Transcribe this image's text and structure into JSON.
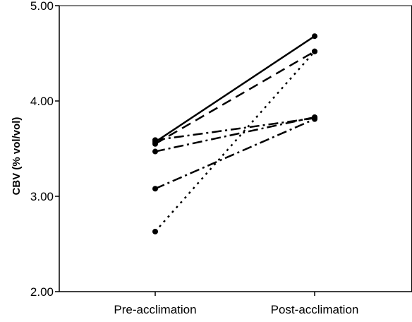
{
  "chart_data": {
    "type": "line",
    "title": "",
    "xlabel": "",
    "ylabel": "CBV (% vol/vol)",
    "categories": [
      "Pre-acclimation",
      "Post-acclimation"
    ],
    "ylim": [
      2.0,
      5.0
    ],
    "yticks": [
      2.0,
      3.0,
      4.0,
      5.0
    ],
    "ytick_labels": [
      "2.00",
      "3.00",
      "4.00",
      "5.00"
    ],
    "grid": false,
    "legend": "none",
    "series": [
      {
        "values": [
          3.57,
          4.68
        ],
        "line_style": "solid"
      },
      {
        "values": [
          3.55,
          4.52
        ],
        "line_style": "dashed"
      },
      {
        "values": [
          2.63,
          4.52
        ],
        "line_style": "dotted"
      },
      {
        "values": [
          3.47,
          3.83
        ],
        "line_style": "dash-dot"
      },
      {
        "values": [
          3.08,
          3.81
        ],
        "line_style": "dash-dot"
      },
      {
        "values": [
          3.59,
          3.82
        ],
        "line_style": "dash-dot"
      }
    ],
    "colors": {
      "line": "#000000",
      "axis": "#000000",
      "background": "#ffffff"
    }
  }
}
